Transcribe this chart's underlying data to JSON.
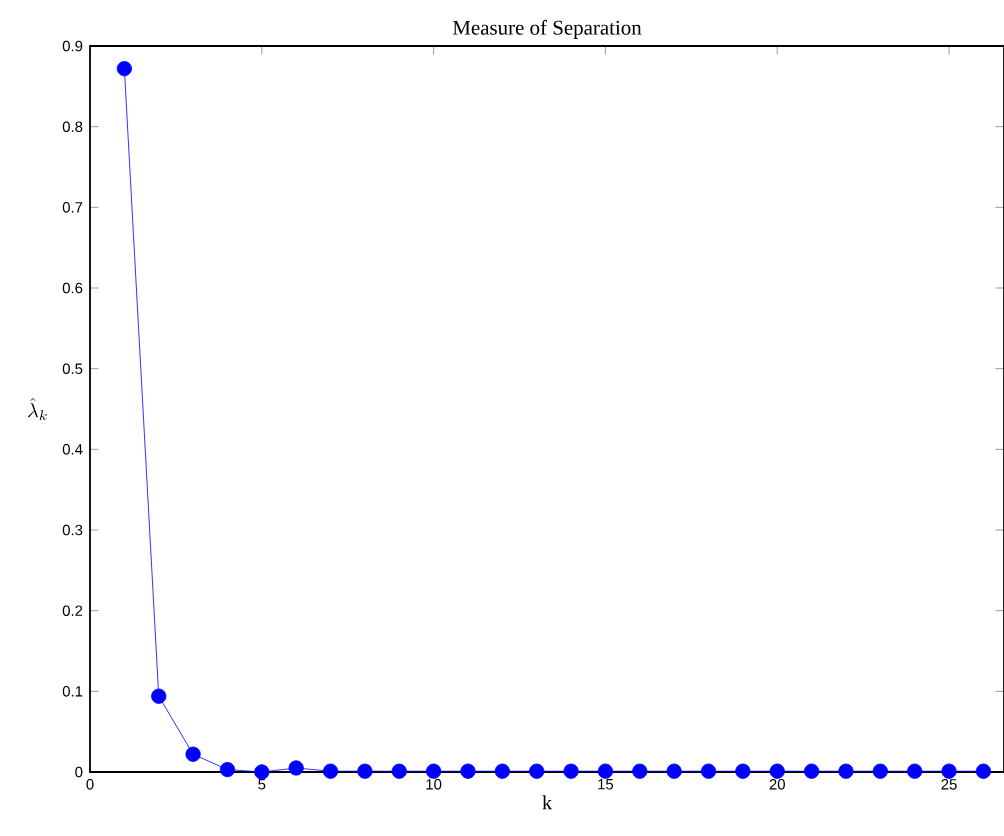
{
  "chart_data": {
    "type": "line",
    "title": "Measure of Separation",
    "xlabel": "k",
    "ylabel": "\\hat{\\lambda}_k",
    "x": [
      1,
      2,
      3,
      4,
      5,
      6,
      7,
      8,
      9,
      10,
      11,
      12,
      13,
      14,
      15,
      16,
      17,
      18,
      19,
      20,
      21,
      22,
      23,
      24,
      25,
      26
    ],
    "series": [
      {
        "color": "#0000ff",
        "values": [
          0.872,
          0.094,
          0.022,
          0.003,
          0.0,
          0.005,
          0.001,
          0.001,
          0.001,
          0.001,
          0.001,
          0.001,
          0.001,
          0.001,
          0.001,
          0.001,
          0.001,
          0.001,
          0.001,
          0.001,
          0.001,
          0.001,
          0.001,
          0.001,
          0.001,
          0.001
        ]
      }
    ],
    "xlim": [
      0,
      26.6
    ],
    "ylim": [
      0,
      0.9
    ],
    "xticks": [
      0,
      5,
      10,
      15,
      20,
      25
    ],
    "yticks": [
      0,
      0.1,
      0.2,
      0.3,
      0.4,
      0.5,
      0.6,
      0.7,
      0.8,
      0.9
    ],
    "marker": "circle",
    "line_style": "solid",
    "grid": false
  }
}
